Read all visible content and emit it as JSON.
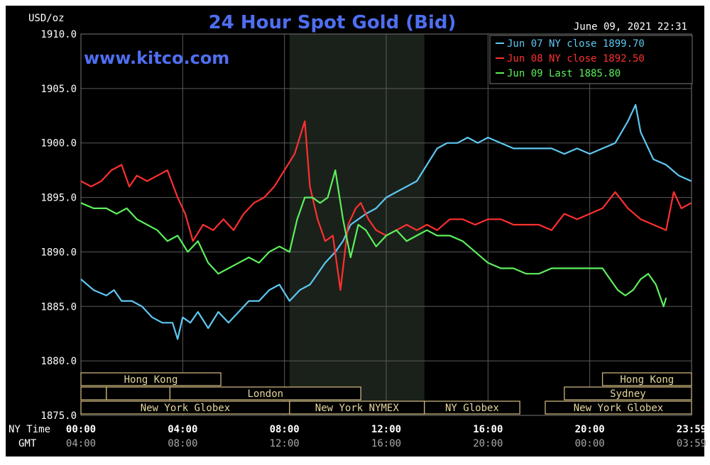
{
  "chart_data": {
    "type": "line",
    "title": "24 Hour Spot Gold (Bid)",
    "website": "www.kitco.com",
    "timestamp": "June 09, 2021 22:31",
    "ylabel": "USD/oz",
    "ylim": [
      1875.0,
      1910.0
    ],
    "y_ticks": [
      "1875.0",
      "1880.0",
      "1885.0",
      "1890.0",
      "1895.0",
      "1900.0",
      "1905.0",
      "1910.0"
    ],
    "x_axis_label_ny": "NY Time",
    "x_axis_label_gmt": "GMT",
    "x_ticks_ny": [
      "00:00",
      "04:00",
      "08:00",
      "12:00",
      "16:00",
      "20:00",
      "23:59"
    ],
    "x_ticks_gmt": [
      "04:00",
      "08:00",
      "12:00",
      "16:00",
      "20:00",
      "00:00",
      "03:59"
    ],
    "xlim_hours": [
      0,
      24
    ],
    "highlight_hours": [
      8.2,
      13.5
    ],
    "legend": [
      {
        "label": "Jun 07 NY close 1899.70",
        "color": "#5ec8f2"
      },
      {
        "label": "Jun 08 NY close 1892.50",
        "color": "#ff3030"
      },
      {
        "label": "Jun 09 Last 1885.80",
        "color": "#5cf05c"
      }
    ],
    "series": [
      {
        "name": "Jun 07 NY close 1899.70",
        "color": "#5ec8f2",
        "x": [
          0,
          0.5,
          1,
          1.3,
          1.6,
          2,
          2.4,
          2.8,
          3.2,
          3.6,
          3.8,
          4,
          4.3,
          4.6,
          5,
          5.4,
          5.8,
          6.2,
          6.6,
          7,
          7.4,
          7.8,
          8.2,
          8.6,
          9,
          9.3,
          9.6,
          10,
          10.3,
          10.6,
          10.9,
          11.2,
          11.6,
          12,
          12.4,
          12.8,
          13.2,
          13.6,
          14,
          14.4,
          14.8,
          15.2,
          15.6,
          16,
          16.5,
          17,
          17.5,
          18,
          18.5,
          19,
          19.5,
          20,
          20.5,
          21,
          21.5,
          21.8,
          22,
          22.5,
          23,
          23.5,
          23.99
        ],
        "y": [
          1887.5,
          1886.5,
          1886.0,
          1886.5,
          1885.5,
          1885.5,
          1885.0,
          1884.0,
          1883.5,
          1883.5,
          1882.0,
          1884.0,
          1883.5,
          1884.5,
          1883.0,
          1884.5,
          1883.5,
          1884.5,
          1885.5,
          1885.5,
          1886.5,
          1887.0,
          1885.5,
          1886.5,
          1887.0,
          1888.0,
          1889.0,
          1890.0,
          1891.0,
          1892.5,
          1893.0,
          1893.5,
          1894.0,
          1895.0,
          1895.5,
          1896.0,
          1896.5,
          1898.0,
          1899.5,
          1900.0,
          1900.0,
          1900.5,
          1900.0,
          1900.5,
          1900.0,
          1899.5,
          1899.5,
          1899.5,
          1899.5,
          1899.0,
          1899.5,
          1899.0,
          1899.5,
          1900.0,
          1902.0,
          1903.5,
          1901.0,
          1898.5,
          1898.0,
          1897.0,
          1896.5
        ]
      },
      {
        "name": "Jun 08 NY close 1892.50",
        "color": "#ff3030",
        "x": [
          0,
          0.4,
          0.8,
          1.2,
          1.6,
          1.9,
          2.2,
          2.6,
          3,
          3.4,
          3.8,
          4.1,
          4.4,
          4.8,
          5.2,
          5.6,
          6,
          6.4,
          6.8,
          7.2,
          7.6,
          8,
          8.4,
          8.8,
          9,
          9.3,
          9.6,
          9.9,
          10.2,
          10.5,
          10.8,
          11,
          11.3,
          11.6,
          12,
          12.4,
          12.8,
          13.2,
          13.6,
          14,
          14.5,
          15,
          15.5,
          16,
          16.5,
          17,
          17.5,
          18,
          18.5,
          19,
          19.5,
          20,
          20.5,
          21,
          21.5,
          22,
          22.5,
          23,
          23.3,
          23.6,
          23.99
        ],
        "y": [
          1896.5,
          1896.0,
          1896.5,
          1897.5,
          1898.0,
          1896.0,
          1897.0,
          1896.5,
          1897.0,
          1897.5,
          1895.0,
          1893.5,
          1891.0,
          1892.5,
          1892.0,
          1893.0,
          1892.0,
          1893.5,
          1894.5,
          1895.0,
          1896.0,
          1897.5,
          1899.0,
          1902.0,
          1896.0,
          1893.0,
          1891.0,
          1891.5,
          1886.5,
          1892.5,
          1894.0,
          1894.5,
          1893.0,
          1892.0,
          1891.5,
          1892.0,
          1892.5,
          1892.0,
          1892.5,
          1892.0,
          1893.0,
          1893.0,
          1892.5,
          1893.0,
          1893.0,
          1892.5,
          1892.5,
          1892.5,
          1892.0,
          1893.5,
          1893.0,
          1893.5,
          1894.0,
          1895.5,
          1894.0,
          1893.0,
          1892.5,
          1892.0,
          1895.5,
          1894.0,
          1894.5
        ]
      },
      {
        "name": "Jun 09 Last 1885.80",
        "color": "#5cf05c",
        "x": [
          0,
          0.5,
          1,
          1.4,
          1.8,
          2.2,
          2.6,
          3,
          3.4,
          3.8,
          4.2,
          4.6,
          5,
          5.4,
          5.8,
          6.2,
          6.6,
          7,
          7.4,
          7.8,
          8.2,
          8.5,
          8.8,
          9.1,
          9.4,
          9.7,
          10,
          10.3,
          10.6,
          10.9,
          11.2,
          11.6,
          12,
          12.4,
          12.8,
          13.2,
          13.6,
          14,
          14.5,
          15,
          15.5,
          16,
          16.5,
          17,
          17.5,
          18,
          18.5,
          19,
          19.5,
          20,
          20.5,
          20.8,
          21.1,
          21.4,
          21.7,
          22,
          22.3,
          22.6,
          22.9,
          23
        ],
        "y": [
          1894.5,
          1894.0,
          1894.0,
          1893.5,
          1894.0,
          1893.0,
          1892.5,
          1892.0,
          1891.0,
          1891.5,
          1890.0,
          1891.0,
          1889.0,
          1888.0,
          1888.5,
          1889.0,
          1889.5,
          1889.0,
          1890.0,
          1890.5,
          1890.0,
          1893.0,
          1895.0,
          1895.0,
          1894.5,
          1895.0,
          1897.5,
          1893.0,
          1889.5,
          1892.5,
          1892.0,
          1890.5,
          1891.5,
          1892.0,
          1891.0,
          1891.5,
          1892.0,
          1891.5,
          1891.5,
          1891.0,
          1890.0,
          1889.0,
          1888.5,
          1888.5,
          1888.0,
          1888.0,
          1888.5,
          1888.5,
          1888.5,
          1888.5,
          1888.5,
          1887.5,
          1886.5,
          1886.0,
          1886.5,
          1887.5,
          1888.0,
          1887.0,
          1885.0,
          1885.8
        ]
      }
    ],
    "sessions": [
      {
        "label": "Hong Kong",
        "row": 0,
        "start": 0,
        "end": 5.5,
        "show_label": true
      },
      {
        "label": "Hong Kong",
        "row": 0,
        "start": 20.5,
        "end": 24,
        "show_label": true
      },
      {
        "label": "",
        "row": 1,
        "start": 0,
        "end": 1.0,
        "show_label": false
      },
      {
        "label": "London",
        "row": 1,
        "start": 1.0,
        "end": 3.5,
        "show_label": false
      },
      {
        "label": "London",
        "row": 1,
        "start": 3.5,
        "end": 11.0,
        "show_label": true
      },
      {
        "label": "Sydney",
        "row": 1,
        "start": 19.0,
        "end": 24,
        "show_label": true
      },
      {
        "label": "New York Globex",
        "row": 2,
        "start": 0,
        "end": 8.2,
        "show_label": true
      },
      {
        "label": "New York NYMEX",
        "row": 2,
        "start": 8.2,
        "end": 13.5,
        "show_label": true
      },
      {
        "label": "NY Globex",
        "row": 2,
        "start": 13.5,
        "end": 17.25,
        "show_label": true
      },
      {
        "label": "New York Globex",
        "row": 2,
        "start": 18.25,
        "end": 24,
        "show_label": true
      }
    ]
  }
}
